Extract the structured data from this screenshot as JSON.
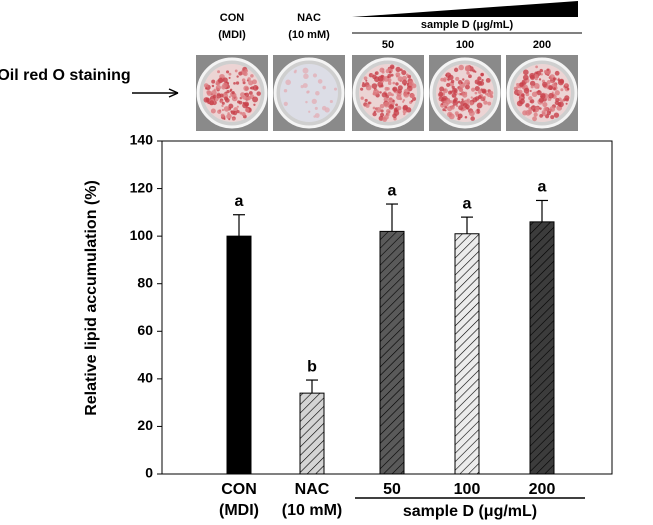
{
  "chart_data": {
    "type": "bar",
    "y_label": "Relative lipid accumulation (%)",
    "categories": [
      "CON",
      "NAC",
      "50",
      "100",
      "200"
    ],
    "category_sublabels": [
      "(MDI)",
      "(10 mM)",
      null,
      null,
      null
    ],
    "group_label": "sample D (μg/mL)",
    "values": [
      100,
      34,
      102,
      101,
      106
    ],
    "errors": [
      9,
      5.5,
      11.5,
      7,
      9
    ],
    "significance": [
      "a",
      "b",
      "a",
      "a",
      "a"
    ],
    "colors": [
      "#000000",
      "#d4d4d4",
      "#5a5a5a",
      "#ececec",
      "#3c3c3c"
    ],
    "hatched": [
      false,
      true,
      true,
      true,
      true
    ],
    "ylim": [
      0,
      140
    ],
    "yticks": [
      0,
      20,
      40,
      60,
      80,
      100,
      120,
      140
    ],
    "grid": false,
    "image_label": "Oil red O staining"
  }
}
